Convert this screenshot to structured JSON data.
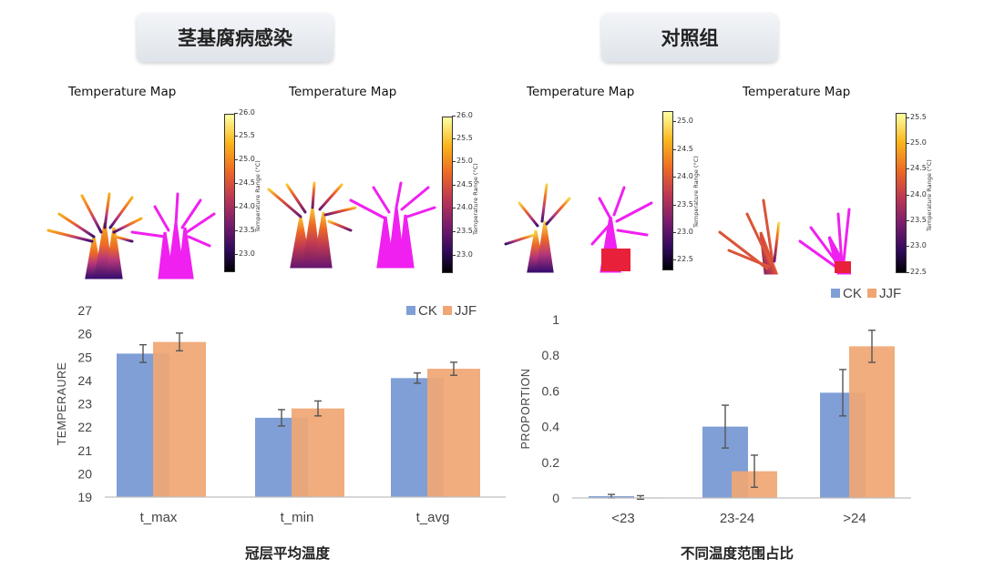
{
  "headers": {
    "infected": "茎基腐病感染",
    "control": "对照组"
  },
  "thermal_maps": [
    {
      "title": "Temperature Map",
      "colorbar_label": "Temperature Range (°C)",
      "ticks": [
        "26.0",
        "25.5",
        "25.0",
        "24.5",
        "24.0",
        "23.5",
        "23.0"
      ]
    },
    {
      "title": "Temperature Map",
      "colorbar_label": "Temperature Range (°C)",
      "ticks": [
        "26.0",
        "25.5",
        "25.0",
        "24.5",
        "24.0",
        "23.5",
        "23.0"
      ]
    },
    {
      "title": "Temperature Map",
      "colorbar_label": "Temperature Range (°C)",
      "ticks": [
        "25.0",
        "24.5",
        "24.0",
        "23.5",
        "23.0",
        "22.5"
      ]
    },
    {
      "title": "Temperature Map",
      "colorbar_label": "Temperature Range (°C)",
      "ticks": [
        "25.5",
        "25.0",
        "24.5",
        "24.0",
        "23.5",
        "23.0",
        "22.5"
      ]
    }
  ],
  "colors": {
    "ck": "#7f9fd6",
    "jjf": "#f0a673",
    "overlap": "#b88570",
    "axis": "#bfbfbf",
    "header_bg": "#e3e7ec"
  },
  "chart_data": [
    {
      "type": "bar",
      "categories": [
        "t_max",
        "t_min",
        "t_avg"
      ],
      "series": [
        {
          "name": "CK",
          "values": [
            25.15,
            22.4,
            24.1
          ],
          "errors": [
            0.38,
            0.35,
            0.22
          ]
        },
        {
          "name": "JJF",
          "values": [
            25.65,
            22.8,
            24.5
          ],
          "errors": [
            0.38,
            0.32,
            0.28
          ]
        }
      ],
      "title": "",
      "xlabel": "冠层平均温度",
      "ylabel": "TEMPERAURE",
      "ylim": [
        19,
        27
      ],
      "yticks": [
        "19",
        "20",
        "21",
        "22",
        "23",
        "24",
        "25",
        "26",
        "27"
      ],
      "legend": "top-right"
    },
    {
      "type": "bar",
      "categories": [
        "<23",
        "23-24",
        ">24"
      ],
      "series": [
        {
          "name": "CK",
          "values": [
            0.01,
            0.4,
            0.59
          ],
          "errors": [
            0.01,
            0.12,
            0.13
          ]
        },
        {
          "name": "JJF",
          "values": [
            0.003,
            0.15,
            0.85
          ],
          "errors": [
            0.01,
            0.09,
            0.09
          ]
        }
      ],
      "title": "",
      "xlabel": "不同温度范围占比",
      "ylabel": "PROPORTION",
      "ylim": [
        0,
        1
      ],
      "yticks": [
        "0",
        "0.2",
        "0.4",
        "0.6",
        "0.8",
        "1"
      ],
      "legend": "top-right"
    }
  ]
}
